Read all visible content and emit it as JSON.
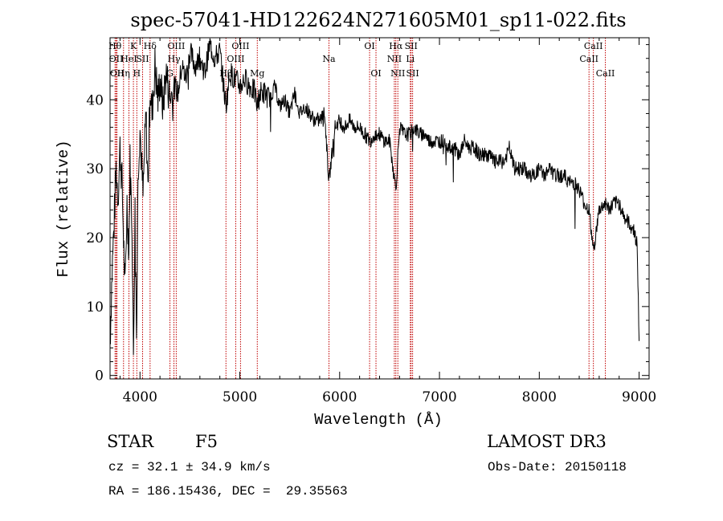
{
  "chart_data": {
    "type": "line",
    "title": "spec-57041-HD122624N271605M01_sp11-022.fits",
    "xlabel": "Wavelength (Å)",
    "ylabel": "Flux (relative)",
    "xlim": [
      3700,
      9100
    ],
    "ylim": [
      -0.5,
      49
    ],
    "xticks": [
      4000,
      5000,
      6000,
      7000,
      8000,
      9000
    ],
    "yticks": [
      0,
      10,
      20,
      30,
      40
    ],
    "xtick_labels": [
      "4000",
      "5000",
      "6000",
      "7000",
      "8000",
      "9000"
    ],
    "ytick_labels": [
      "0",
      "10",
      "20",
      "30",
      "40"
    ],
    "series": [
      {
        "x": [
          3700,
          3720,
          3740,
          3760,
          3780,
          3800,
          3820,
          3835,
          3850,
          3870,
          3889,
          3900,
          3920,
          3934,
          3950,
          3968,
          3980,
          4000,
          4030,
          4060,
          4080,
          4101,
          4120,
          4150,
          4180,
          4200,
          4230,
          4260,
          4300,
          4340,
          4380,
          4420,
          4460,
          4500,
          4550,
          4600,
          4650,
          4700,
          4750,
          4800,
          4861,
          4900,
          4950,
          5000,
          5050,
          5100,
          5150,
          5175,
          5200,
          5250,
          5300,
          5350,
          5400,
          5450,
          5500,
          5550,
          5600,
          5650,
          5700,
          5750,
          5800,
          5850,
          5893,
          5950,
          6000,
          6050,
          6100,
          6150,
          6200,
          6250,
          6300,
          6350,
          6400,
          6450,
          6500,
          6563,
          6600,
          6650,
          6700,
          6750,
          6800,
          6850,
          6900,
          6950,
          7000,
          7050,
          7100,
          7150,
          7200,
          7250,
          7300,
          7350,
          7400,
          7450,
          7500,
          7550,
          7600,
          7650,
          7700,
          7750,
          7800,
          7850,
          7900,
          7950,
          8000,
          8050,
          8100,
          8150,
          8200,
          8250,
          8300,
          8350,
          8400,
          8450,
          8498,
          8542,
          8600,
          8662,
          8700,
          8750,
          8800,
          8850,
          8900,
          8950,
          8980,
          9000
        ],
        "y": [
          5,
          15,
          22,
          30,
          26,
          33,
          28,
          20,
          12,
          25,
          18,
          31,
          22,
          3,
          24,
          8,
          30,
          36,
          26,
          38,
          27,
          42,
          38,
          45,
          40,
          43,
          39,
          44,
          40,
          42,
          41,
          45,
          43,
          47,
          45,
          46,
          44,
          48,
          46,
          47,
          39,
          44,
          43,
          42,
          43,
          42,
          41,
          39,
          41,
          41,
          40,
          42,
          39,
          40,
          38,
          41,
          38,
          39,
          38,
          37,
          37,
          38,
          28,
          36,
          37,
          36,
          37,
          36,
          36,
          35,
          34,
          35,
          35,
          34,
          34,
          27,
          36,
          35,
          35,
          36,
          35,
          35,
          34,
          34,
          34,
          34,
          33,
          33,
          32,
          34,
          33,
          33,
          32,
          32,
          32,
          31,
          31,
          31,
          33,
          30,
          30,
          30,
          29,
          29,
          30,
          29,
          30,
          29,
          29,
          29,
          28,
          28,
          27,
          25,
          24,
          18,
          24,
          25,
          24,
          25,
          25,
          23,
          22,
          21,
          19,
          5
        ]
      }
    ],
    "lines": [
      {
        "x": 3750,
        "label": "Hθ",
        "row": 0
      },
      {
        "x": 3760,
        "label": "OII",
        "row": 1
      },
      {
        "x": 3770,
        "label": "OII",
        "row": 2
      },
      {
        "x": 3835,
        "label": "Hη",
        "row": 2
      },
      {
        "x": 3889,
        "label": "HeI",
        "row": 1
      },
      {
        "x": 3934,
        "label": "K",
        "row": 0
      },
      {
        "x": 3968,
        "label": "H",
        "row": 2
      },
      {
        "x": 4026,
        "label": "SII",
        "row": 1
      },
      {
        "x": 4101,
        "label": "Hδ",
        "row": 0
      },
      {
        "x": 4300,
        "label": "G",
        "row": 2
      },
      {
        "x": 4340,
        "label": "Hγ",
        "row": 1
      },
      {
        "x": 4363,
        "label": "OIII",
        "row": 0
      },
      {
        "x": 4861,
        "label": "Hβ",
        "row": 2
      },
      {
        "x": 4959,
        "label": "OIII",
        "row": 1
      },
      {
        "x": 5007,
        "label": "OIII",
        "row": 0
      },
      {
        "x": 5175,
        "label": "Mg",
        "row": 2
      },
      {
        "x": 5893,
        "label": "Na",
        "row": 1
      },
      {
        "x": 6300,
        "label": "OI",
        "row": 0
      },
      {
        "x": 6364,
        "label": "OI",
        "row": 2
      },
      {
        "x": 6548,
        "label": "NII",
        "row": 1
      },
      {
        "x": 6563,
        "label": "Hα",
        "row": 0
      },
      {
        "x": 6583,
        "label": "NII",
        "row": 2
      },
      {
        "x": 6708,
        "label": "Li",
        "row": 1
      },
      {
        "x": 6716,
        "label": "SII",
        "row": 0
      },
      {
        "x": 6731,
        "label": "SII",
        "row": 2
      },
      {
        "x": 8498,
        "label": "CaII",
        "row": 1
      },
      {
        "x": 8542,
        "label": "CaII",
        "row": 0
      },
      {
        "x": 8662,
        "label": "CaII",
        "row": 2
      }
    ],
    "colors": {
      "spectrum": "#000000",
      "lines": "#c00000",
      "axes": "#000000"
    }
  },
  "info": {
    "class": "STAR",
    "subclass": "F5",
    "survey": "LAMOST DR3",
    "cz": "cz = 32.1 ± 34.9 km/s",
    "obs_date": "Obs-Date: 20150118",
    "coords": "RA = 186.15436, DEC =  29.35563"
  }
}
